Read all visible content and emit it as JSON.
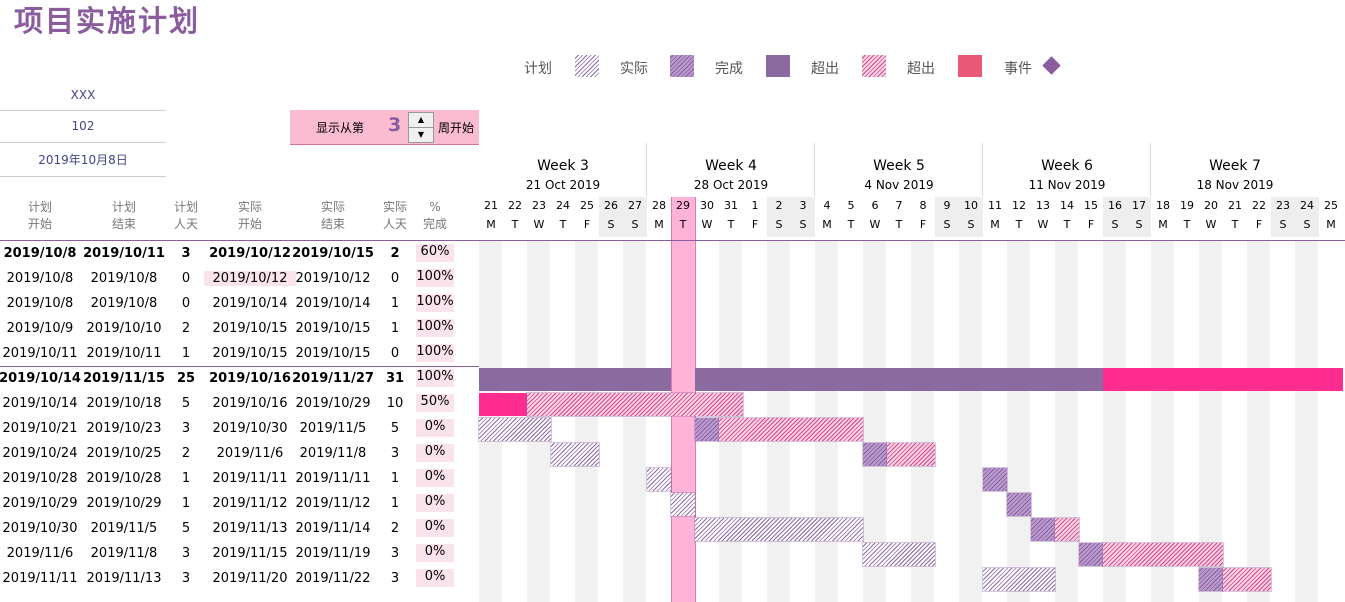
{
  "title": "项目实施计划",
  "legend": [
    {
      "label": "计划",
      "swatch": "hatch-plan"
    },
    {
      "label": "实际",
      "swatch": "hatch-actual"
    },
    {
      "label": "完成",
      "swatch": "solid-purple"
    },
    {
      "label": "超出",
      "swatch": "hatch-over"
    },
    {
      "label": "超出",
      "swatch": "solid-pink"
    },
    {
      "label": "事件",
      "swatch": "diamond"
    }
  ],
  "info": {
    "name": "XXX",
    "code": "102",
    "date": "2019年10月8日"
  },
  "spinner": {
    "label_before": "显示从第",
    "value": "3",
    "label_after": "周开始"
  },
  "columns": [
    {
      "l1": "计划",
      "l2": "开始"
    },
    {
      "l1": "计划",
      "l2": "结束"
    },
    {
      "l1": "计划",
      "l2": "人天"
    },
    {
      "l1": "实际",
      "l2": "开始"
    },
    {
      "l1": "实际",
      "l2": "结束"
    },
    {
      "l1": "实际",
      "l2": "人天"
    },
    {
      "l1": "%",
      "l2": "完成"
    }
  ],
  "weeks": [
    {
      "name": "Week 3",
      "date": "21 Oct 2019"
    },
    {
      "name": "Week 4",
      "date": "28 Oct 2019"
    },
    {
      "name": "Week 5",
      "date": "4 Nov 2019"
    },
    {
      "name": "Week 6",
      "date": "11 Nov 2019"
    },
    {
      "name": "Week 7",
      "date": "18 Nov 2019"
    }
  ],
  "days": [
    "21",
    "22",
    "23",
    "24",
    "25",
    "26",
    "27",
    "28",
    "29",
    "30",
    "31",
    "1",
    "2",
    "3",
    "4",
    "5",
    "6",
    "7",
    "8",
    "9",
    "10",
    "11",
    "12",
    "13",
    "14",
    "15",
    "16",
    "17",
    "18",
    "19",
    "20",
    "21",
    "22",
    "23",
    "24",
    "25"
  ],
  "day_letters": [
    "M",
    "T",
    "W",
    "T",
    "F",
    "S",
    "S",
    "M",
    "T",
    "W",
    "T",
    "F",
    "S",
    "S",
    "M",
    "T",
    "W",
    "T",
    "F",
    "S",
    "S",
    "M",
    "T",
    "W",
    "T",
    "F",
    "S",
    "S",
    "M",
    "T",
    "W",
    "T",
    "F",
    "S",
    "S",
    "M"
  ],
  "today_label": "29",
  "rows": [
    {
      "ps": "2019/10/8",
      "pe": "2019/10/11",
      "pd": "3",
      "as": "2019/10/12",
      "ae": "2019/10/15",
      "ad": "2",
      "pct": "60%",
      "bold": true
    },
    {
      "ps": "2019/10/8",
      "pe": "2019/10/8",
      "pd": "0",
      "as": "2019/10/12",
      "ae": "2019/10/12",
      "ad": "0",
      "pct": "100%",
      "bold": false
    },
    {
      "ps": "2019/10/8",
      "pe": "2019/10/8",
      "pd": "0",
      "as": "2019/10/14",
      "ae": "2019/10/14",
      "ad": "1",
      "pct": "100%",
      "bold": false
    },
    {
      "ps": "2019/10/9",
      "pe": "2019/10/10",
      "pd": "2",
      "as": "2019/10/15",
      "ae": "2019/10/15",
      "ad": "1",
      "pct": "100%",
      "bold": false
    },
    {
      "ps": "2019/10/11",
      "pe": "2019/10/11",
      "pd": "1",
      "as": "2019/10/15",
      "ae": "2019/10/15",
      "ad": "0",
      "pct": "100%",
      "bold": false
    },
    {
      "ps": "2019/10/14",
      "pe": "2019/11/15",
      "pd": "25",
      "as": "2019/10/16",
      "ae": "2019/11/27",
      "ad": "31",
      "pct": "100%",
      "bold": true
    },
    {
      "ps": "2019/10/14",
      "pe": "2019/10/18",
      "pd": "5",
      "as": "2019/10/16",
      "ae": "2019/10/29",
      "ad": "10",
      "pct": "50%",
      "bold": false
    },
    {
      "ps": "2019/10/21",
      "pe": "2019/10/23",
      "pd": "3",
      "as": "2019/10/30",
      "ae": "2019/11/5",
      "ad": "5",
      "pct": "0%",
      "bold": false
    },
    {
      "ps": "2019/10/24",
      "pe": "2019/10/25",
      "pd": "2",
      "as": "2019/11/6",
      "ae": "2019/11/8",
      "ad": "3",
      "pct": "0%",
      "bold": false
    },
    {
      "ps": "2019/10/28",
      "pe": "2019/10/28",
      "pd": "1",
      "as": "2019/11/11",
      "ae": "2019/11/11",
      "ad": "1",
      "pct": "0%",
      "bold": false
    },
    {
      "ps": "2019/10/29",
      "pe": "2019/10/29",
      "pd": "1",
      "as": "2019/11/12",
      "ae": "2019/11/12",
      "ad": "1",
      "pct": "0%",
      "bold": false
    },
    {
      "ps": "2019/10/30",
      "pe": "2019/11/5",
      "pd": "5",
      "as": "2019/11/13",
      "ae": "2019/11/14",
      "ad": "2",
      "pct": "0%",
      "bold": false
    },
    {
      "ps": "2019/11/6",
      "pe": "2019/11/8",
      "pd": "3",
      "as": "2019/11/15",
      "ae": "2019/11/19",
      "ad": "3",
      "pct": "0%",
      "bold": false
    },
    {
      "ps": "2019/11/11",
      "pe": "2019/11/13",
      "pd": "3",
      "as": "2019/11/20",
      "ae": "2019/11/22",
      "ad": "3",
      "pct": "0%",
      "bold": false
    }
  ],
  "colors": {
    "accent": "#8b5d9e",
    "today": "#ffb3d9",
    "pink": "#ff2d8f",
    "weekend": "#eeeeee"
  }
}
